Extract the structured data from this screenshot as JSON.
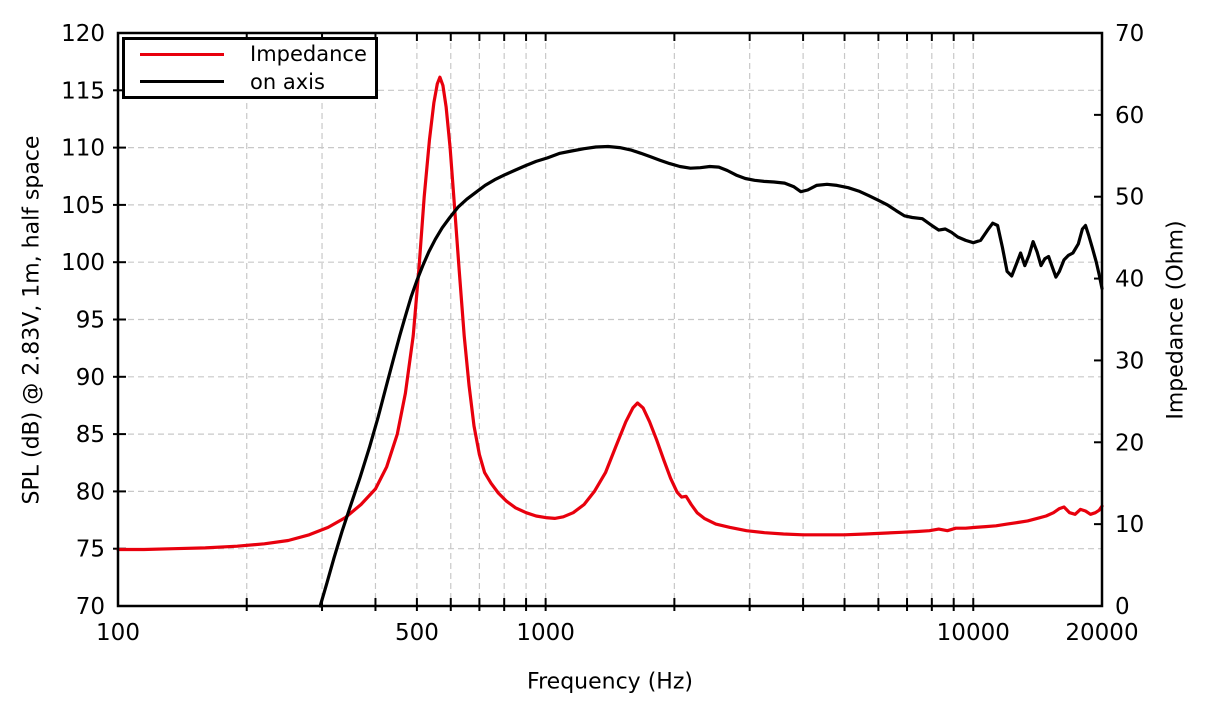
{
  "figure": {
    "background": "#ffffff",
    "axis_color": "#000000",
    "grid_color": "#c8c8c8"
  },
  "chart_data": {
    "type": "line",
    "title": "",
    "grid": true,
    "x_axis": {
      "label": "Frequency (Hz)",
      "scale": "log",
      "min": 100,
      "max": 20000,
      "major_ticks": [
        {
          "value": 100,
          "label": "100"
        },
        {
          "value": 500,
          "label": "500"
        },
        {
          "value": 1000,
          "label": "1000"
        },
        {
          "value": 10000,
          "label": "10000"
        },
        {
          "value": 20000,
          "label": "20000"
        }
      ],
      "gridline_freqs": [
        200,
        300,
        400,
        500,
        600,
        700,
        800,
        900,
        1000,
        2000,
        3000,
        4000,
        5000,
        6000,
        7000,
        8000,
        9000,
        10000
      ]
    },
    "y_left": {
      "label": "SPL (dB) @ 2.83V, 1m, half space",
      "min": 70,
      "max": 120,
      "tick_step": 5,
      "ticks": [
        70,
        75,
        80,
        85,
        90,
        95,
        100,
        105,
        110,
        115,
        120
      ],
      "gridline_values": [
        75,
        80,
        85,
        90,
        95,
        100,
        105,
        110,
        115
      ]
    },
    "y_right": {
      "label": "Impedance (Ohm)",
      "min": 0,
      "max": 70,
      "tick_step": 10,
      "ticks": [
        0,
        10,
        20,
        30,
        40,
        50,
        60,
        70
      ]
    },
    "legend": {
      "position": "top-left",
      "entries": [
        {
          "label": "Impedance",
          "color": "#e8000d"
        },
        {
          "label": "on axis",
          "color": "#000000"
        }
      ]
    },
    "series": [
      {
        "name": "Impedance",
        "axis": "right",
        "unit": "Ohm",
        "color": "#e8000d",
        "points": [
          [
            100,
            6.9
          ],
          [
            115,
            6.9
          ],
          [
            135,
            7.0
          ],
          [
            160,
            7.1
          ],
          [
            190,
            7.3
          ],
          [
            220,
            7.6
          ],
          [
            250,
            8.0
          ],
          [
            280,
            8.7
          ],
          [
            310,
            9.6
          ],
          [
            340,
            10.8
          ],
          [
            370,
            12.4
          ],
          [
            400,
            14.3
          ],
          [
            425,
            17.0
          ],
          [
            450,
            21.0
          ],
          [
            470,
            26.0
          ],
          [
            490,
            33.0
          ],
          [
            505,
            41.0
          ],
          [
            520,
            50.0
          ],
          [
            535,
            57.0
          ],
          [
            548,
            61.5
          ],
          [
            558,
            63.8
          ],
          [
            566,
            64.6
          ],
          [
            575,
            63.6
          ],
          [
            585,
            61.0
          ],
          [
            598,
            56.0
          ],
          [
            612,
            49.0
          ],
          [
            628,
            41.0
          ],
          [
            645,
            33.0
          ],
          [
            662,
            27.0
          ],
          [
            680,
            22.0
          ],
          [
            700,
            18.5
          ],
          [
            720,
            16.3
          ],
          [
            745,
            15.0
          ],
          [
            775,
            13.8
          ],
          [
            810,
            12.8
          ],
          [
            850,
            12.0
          ],
          [
            900,
            11.4
          ],
          [
            950,
            11.0
          ],
          [
            1000,
            10.8
          ],
          [
            1050,
            10.7
          ],
          [
            1100,
            10.9
          ],
          [
            1160,
            11.4
          ],
          [
            1230,
            12.4
          ],
          [
            1300,
            14.0
          ],
          [
            1380,
            16.3
          ],
          [
            1460,
            19.5
          ],
          [
            1540,
            22.5
          ],
          [
            1600,
            24.2
          ],
          [
            1640,
            24.8
          ],
          [
            1690,
            24.2
          ],
          [
            1750,
            22.5
          ],
          [
            1820,
            20.2
          ],
          [
            1890,
            17.8
          ],
          [
            1960,
            15.6
          ],
          [
            2030,
            13.9
          ],
          [
            2080,
            13.3
          ],
          [
            2130,
            13.4
          ],
          [
            2190,
            12.4
          ],
          [
            2260,
            11.4
          ],
          [
            2350,
            10.7
          ],
          [
            2500,
            10.0
          ],
          [
            2700,
            9.6
          ],
          [
            2950,
            9.2
          ],
          [
            3250,
            8.95
          ],
          [
            3600,
            8.8
          ],
          [
            4000,
            8.7
          ],
          [
            4500,
            8.7
          ],
          [
            5000,
            8.7
          ],
          [
            5600,
            8.8
          ],
          [
            6200,
            8.9
          ],
          [
            6800,
            9.0
          ],
          [
            7400,
            9.1
          ],
          [
            7900,
            9.2
          ],
          [
            8300,
            9.4
          ],
          [
            8700,
            9.2
          ],
          [
            9100,
            9.5
          ],
          [
            9600,
            9.5
          ],
          [
            10100,
            9.6
          ],
          [
            10700,
            9.7
          ],
          [
            11300,
            9.8
          ],
          [
            12000,
            10.0
          ],
          [
            12700,
            10.2
          ],
          [
            13400,
            10.4
          ],
          [
            14100,
            10.7
          ],
          [
            14800,
            11.0
          ],
          [
            15400,
            11.4
          ],
          [
            15900,
            11.9
          ],
          [
            16300,
            12.1
          ],
          [
            16800,
            11.4
          ],
          [
            17300,
            11.2
          ],
          [
            17800,
            11.8
          ],
          [
            18300,
            11.6
          ],
          [
            18800,
            11.2
          ],
          [
            19300,
            11.4
          ],
          [
            19700,
            11.7
          ],
          [
            20000,
            12.2
          ]
        ]
      },
      {
        "name": "on axis",
        "axis": "left",
        "unit": "dB",
        "color": "#000000",
        "points": [
          [
            297,
            70
          ],
          [
            308,
            72
          ],
          [
            320,
            74.2
          ],
          [
            334,
            76.5
          ],
          [
            350,
            78.8
          ],
          [
            368,
            81.2
          ],
          [
            387,
            83.8
          ],
          [
            406,
            86.5
          ],
          [
            424,
            89.2
          ],
          [
            441,
            91.6
          ],
          [
            456,
            93.6
          ],
          [
            470,
            95.3
          ],
          [
            485,
            97.0
          ],
          [
            500,
            98.4
          ],
          [
            516,
            99.7
          ],
          [
            533,
            100.9
          ],
          [
            552,
            102.0
          ],
          [
            573,
            103.0
          ],
          [
            597,
            103.9
          ],
          [
            624,
            104.8
          ],
          [
            654,
            105.5
          ],
          [
            687,
            106.1
          ],
          [
            722,
            106.7
          ],
          [
            760,
            107.2
          ],
          [
            800,
            107.6
          ],
          [
            845,
            108.0
          ],
          [
            895,
            108.4
          ],
          [
            950,
            108.8
          ],
          [
            1010,
            109.1
          ],
          [
            1080,
            109.5
          ],
          [
            1150,
            109.7
          ],
          [
            1230,
            109.9
          ],
          [
            1310,
            110.05
          ],
          [
            1400,
            110.1
          ],
          [
            1490,
            110.0
          ],
          [
            1580,
            109.8
          ],
          [
            1670,
            109.5
          ],
          [
            1760,
            109.2
          ],
          [
            1850,
            108.9
          ],
          [
            1950,
            108.6
          ],
          [
            2060,
            108.35
          ],
          [
            2180,
            108.2
          ],
          [
            2300,
            108.25
          ],
          [
            2420,
            108.35
          ],
          [
            2540,
            108.3
          ],
          [
            2660,
            108.0
          ],
          [
            2790,
            107.6
          ],
          [
            2930,
            107.3
          ],
          [
            3080,
            107.15
          ],
          [
            3240,
            107.05
          ],
          [
            3420,
            107.0
          ],
          [
            3620,
            106.9
          ],
          [
            3800,
            106.6
          ],
          [
            3950,
            106.15
          ],
          [
            4100,
            106.3
          ],
          [
            4300,
            106.7
          ],
          [
            4550,
            106.8
          ],
          [
            4800,
            106.7
          ],
          [
            5100,
            106.5
          ],
          [
            5400,
            106.2
          ],
          [
            5700,
            105.8
          ],
          [
            6000,
            105.4
          ],
          [
            6300,
            105.0
          ],
          [
            6600,
            104.5
          ],
          [
            6900,
            104.05
          ],
          [
            7200,
            103.9
          ],
          [
            7600,
            103.8
          ],
          [
            8000,
            103.2
          ],
          [
            8300,
            102.8
          ],
          [
            8600,
            102.9
          ],
          [
            8900,
            102.6
          ],
          [
            9200,
            102.2
          ],
          [
            9600,
            101.9
          ],
          [
            10000,
            101.7
          ],
          [
            10400,
            101.9
          ],
          [
            10800,
            102.8
          ],
          [
            11100,
            103.4
          ],
          [
            11400,
            103.2
          ],
          [
            11700,
            101.3
          ],
          [
            12000,
            99.2
          ],
          [
            12300,
            98.8
          ],
          [
            12600,
            99.8
          ],
          [
            12900,
            100.8
          ],
          [
            13200,
            99.7
          ],
          [
            13500,
            100.6
          ],
          [
            13800,
            101.8
          ],
          [
            14100,
            100.9
          ],
          [
            14400,
            99.7
          ],
          [
            14700,
            100.3
          ],
          [
            15000,
            100.5
          ],
          [
            15300,
            99.6
          ],
          [
            15600,
            98.7
          ],
          [
            15900,
            99.2
          ],
          [
            16300,
            100.2
          ],
          [
            16700,
            100.6
          ],
          [
            17100,
            100.8
          ],
          [
            17600,
            101.6
          ],
          [
            18000,
            102.9
          ],
          [
            18300,
            103.2
          ],
          [
            18600,
            102.4
          ],
          [
            19000,
            101.2
          ],
          [
            19400,
            100.0
          ],
          [
            19700,
            98.9
          ],
          [
            20000,
            97.7
          ]
        ]
      }
    ]
  }
}
